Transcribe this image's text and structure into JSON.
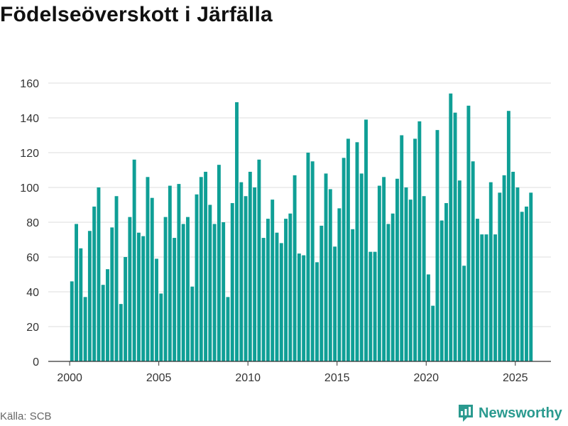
{
  "header": {
    "title": "Födelseöverskott i Järfälla"
  },
  "footer": {
    "source": "Källa: SCB",
    "brand": "Newsworthy"
  },
  "colors": {
    "bar": "#0f9f96",
    "grid": "#dddddd",
    "axis": "#333333",
    "brand": "#2a9a8f"
  },
  "chart_data": {
    "type": "bar",
    "title": "Födelseöverskott i Järfälla",
    "xlabel": "",
    "ylabel": "",
    "xlim": [
      1998.8,
      2027.0
    ],
    "ylim": [
      0,
      160
    ],
    "yticks": [
      0,
      20,
      40,
      60,
      80,
      100,
      120,
      140,
      160
    ],
    "xticks": [
      2000,
      2005,
      2010,
      2015,
      2020,
      2025
    ],
    "grid": true,
    "frequency": "quarterly",
    "start": 2000.125,
    "step": 0.25,
    "values": [
      46,
      79,
      65,
      37,
      75,
      89,
      100,
      44,
      53,
      77,
      95,
      33,
      60,
      83,
      116,
      74,
      72,
      106,
      94,
      59,
      39,
      83,
      101,
      71,
      102,
      79,
      83,
      43,
      96,
      106,
      109,
      90,
      79,
      113,
      80,
      37,
      91,
      149,
      103,
      95,
      109,
      100,
      116,
      71,
      82,
      93,
      74,
      68,
      82,
      85,
      107,
      62,
      61,
      120,
      115,
      57,
      78,
      108,
      99,
      66,
      88,
      117,
      128,
      76,
      126,
      108,
      139,
      63,
      63,
      101,
      106,
      79,
      85,
      105,
      130,
      100,
      93,
      128,
      138,
      95,
      50,
      32,
      133,
      81,
      91,
      154,
      143,
      104,
      55,
      147,
      115,
      82,
      73,
      73,
      103,
      73,
      97,
      107,
      144,
      109,
      100,
      86,
      89,
      97
    ]
  }
}
